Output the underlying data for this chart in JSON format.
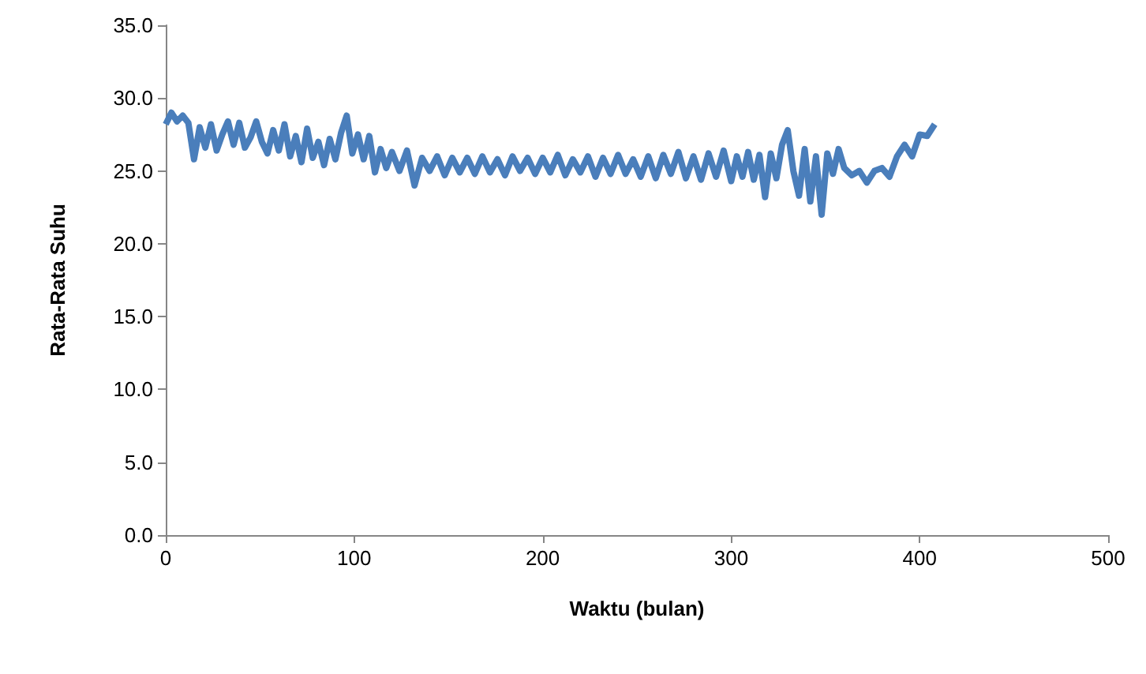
{
  "chart_data": {
    "type": "line",
    "xlabel": "Waktu (bulan)",
    "ylabel": "Rata-Rata Suhu",
    "xlim": [
      0,
      500
    ],
    "xticks": [
      0,
      100,
      200,
      300,
      400,
      500
    ],
    "ylim": [
      0,
      35
    ],
    "yticks": [
      {
        "value": 0,
        "label": "0.0"
      },
      {
        "value": 5,
        "label": "5.0"
      },
      {
        "value": 10,
        "label": "10.0"
      },
      {
        "value": 15,
        "label": "15.0"
      },
      {
        "value": 20,
        "label": "20.0"
      },
      {
        "value": 25,
        "label": "25.0"
      },
      {
        "value": 30,
        "label": "30.0"
      },
      {
        "value": 35,
        "label": "35.0"
      }
    ],
    "grid": false,
    "marker": "none",
    "line_style": "solid",
    "series": [
      {
        "color": "#4a7ebb",
        "x": [
          0,
          3,
          6,
          9,
          12,
          15,
          18,
          21,
          24,
          27,
          30,
          33,
          36,
          39,
          42,
          45,
          48,
          51,
          54,
          57,
          60,
          63,
          66,
          69,
          72,
          75,
          78,
          81,
          84,
          87,
          90,
          93,
          96,
          99,
          102,
          105,
          108,
          111,
          114,
          117,
          120,
          124,
          128,
          132,
          136,
          140,
          144,
          148,
          152,
          156,
          160,
          164,
          168,
          172,
          176,
          180,
          184,
          188,
          192,
          196,
          200,
          204,
          208,
          212,
          216,
          220,
          224,
          228,
          232,
          236,
          240,
          244,
          248,
          252,
          256,
          260,
          264,
          268,
          272,
          276,
          280,
          284,
          288,
          292,
          296,
          300,
          303,
          306,
          309,
          312,
          315,
          318,
          321,
          324,
          327,
          330,
          333,
          336,
          339,
          342,
          345,
          348,
          351,
          354,
          357,
          360,
          364,
          368,
          372,
          376,
          380,
          384,
          388,
          392,
          396,
          400,
          404,
          408
        ],
        "values": [
          28.2,
          29.0,
          28.4,
          28.8,
          28.3,
          25.8,
          28.0,
          26.6,
          28.2,
          26.4,
          27.5,
          28.4,
          26.8,
          28.3,
          26.6,
          27.3,
          28.4,
          27.0,
          26.2,
          27.8,
          26.4,
          28.2,
          26.0,
          27.4,
          25.6,
          27.9,
          25.9,
          27.0,
          25.4,
          27.2,
          25.8,
          27.6,
          28.8,
          26.2,
          27.5,
          25.8,
          27.4,
          24.9,
          26.5,
          25.2,
          26.3,
          25.0,
          26.4,
          24.0,
          25.9,
          25.0,
          26.0,
          24.7,
          25.9,
          24.9,
          25.9,
          24.8,
          26.0,
          24.9,
          25.8,
          24.7,
          26.0,
          25.0,
          25.9,
          24.8,
          25.9,
          24.9,
          26.1,
          24.7,
          25.8,
          24.9,
          26.0,
          24.6,
          25.9,
          24.8,
          26.1,
          24.8,
          25.8,
          24.6,
          26.0,
          24.5,
          26.1,
          24.8,
          26.3,
          24.5,
          26.0,
          24.4,
          26.2,
          24.6,
          26.4,
          24.3,
          26.0,
          24.6,
          26.3,
          24.4,
          26.1,
          23.2,
          26.2,
          24.5,
          26.8,
          27.8,
          25.0,
          23.3,
          26.5,
          22.9,
          26.0,
          22.0,
          26.2,
          24.8,
          26.5,
          25.2,
          24.7,
          25.0,
          24.2,
          25.0,
          25.2,
          24.6,
          26.0,
          26.8,
          26.0,
          27.5,
          27.4,
          28.2
        ]
      }
    ]
  }
}
